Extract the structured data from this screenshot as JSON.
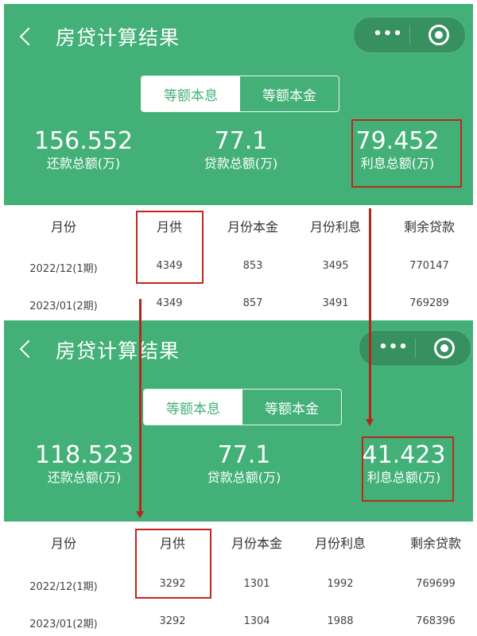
{
  "screens": [
    {
      "title": "房贷计算结果",
      "more_label": "•••",
      "tabs": [
        {
          "label": "等额本息",
          "active": true
        },
        {
          "label": "等额本金",
          "active": false
        }
      ],
      "stats": [
        {
          "value": "156.552",
          "label": "还款总额(万)"
        },
        {
          "value": "77.1",
          "label": "贷款总额(万)"
        },
        {
          "value": "79.452",
          "label": "利息总额(万)"
        }
      ],
      "table": {
        "headers": [
          "月份",
          "月供",
          "月份本金",
          "月份利息",
          "剩余贷款"
        ],
        "rows": [
          [
            "2022/12(1期)",
            "4349",
            "853",
            "3495",
            "770147"
          ],
          [
            "2023/01(2期)",
            "4349",
            "857",
            "3491",
            "769289"
          ]
        ]
      }
    },
    {
      "title": "房贷计算结果",
      "more_label": "•••",
      "tabs": [
        {
          "label": "等额本息",
          "active": true
        },
        {
          "label": "等额本金",
          "active": false
        }
      ],
      "stats": [
        {
          "value": "118.523",
          "label": "还款总额(万)"
        },
        {
          "value": "77.1",
          "label": "贷款总额(万)"
        },
        {
          "value": "41.423",
          "label": "利息总额(万)"
        }
      ],
      "table": {
        "headers": [
          "月份",
          "月供",
          "月份本金",
          "月份利息",
          "剩余贷款"
        ],
        "rows": [
          [
            "2022/12(1期)",
            "3292",
            "1301",
            "1992",
            "769699"
          ],
          [
            "2023/01(2期)",
            "3292",
            "1304",
            "1988",
            "768396"
          ]
        ]
      }
    }
  ],
  "colors": {
    "brand_green": "#42b077",
    "annotation_red": "#c0271c"
  }
}
